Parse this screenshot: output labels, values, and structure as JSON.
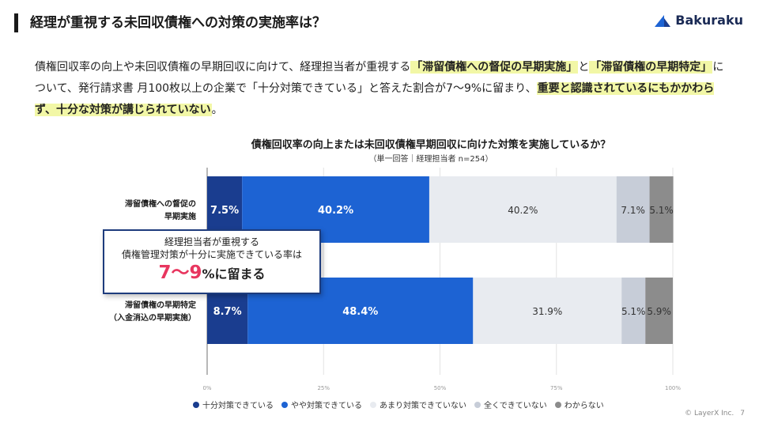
{
  "slide": {
    "title": "経理が重視する未回収債権への対策の実施率は？",
    "logo_text": "Bakuraku",
    "lead_parts": [
      {
        "text": "債権回収率の向上や未回収債権の早期回収に向けて、経理担当者が重視する",
        "hl": false
      },
      {
        "text": "「滞留債権への督促の早期実施」",
        "hl": true
      },
      {
        "text": "と",
        "hl": false
      },
      {
        "text": "「滞留債権の早期特定」",
        "hl": true
      },
      {
        "text": "について、発行請求書 月100枚以上の企業で「十分対策できている」と答えた割合が7〜9%に留まり、",
        "hl": false
      },
      {
        "text": "重要と認識されているにもかかわらず、十分な対策が講じられていない",
        "hl": true
      },
      {
        "text": "。",
        "hl": false
      }
    ],
    "callout": {
      "line1": "経理担当者が重視する",
      "line2": "債権管理対策が十分に実施できている率は",
      "big": "7〜9",
      "rest": "%に留まる"
    },
    "footer": {
      "copyright": "© LayerX Inc.",
      "page": "7"
    }
  },
  "chart_data": {
    "type": "bar",
    "orientation": "horizontal",
    "stacked": true,
    "title": "債権回収率の向上または未回収債権早期回収に向けた対策を実施しているか？",
    "subtitle": "（単一回答｜経理担当者 n=254）",
    "categories": [
      [
        "滞留債権への督促の",
        "早期実施"
      ],
      [
        "滞留債権の早期特定",
        "（入金消込の早期実施）"
      ]
    ],
    "series": [
      {
        "name": "十分対策できている",
        "values": [
          7.5,
          8.7
        ],
        "color": "#1a3d8f",
        "label_color": "#ffffff"
      },
      {
        "name": "やや対策できている",
        "values": [
          40.2,
          48.4
        ],
        "color": "#1d63d3",
        "label_color": "#ffffff"
      },
      {
        "name": "あまり対策できていない",
        "values": [
          40.2,
          31.9
        ],
        "color": "#e8ebf0",
        "label_color": "#333333"
      },
      {
        "name": "全くできていない",
        "values": [
          7.1,
          5.1
        ],
        "color": "#c7cdd8",
        "label_color": "#333333"
      },
      {
        "name": "わからない",
        "values": [
          5.1,
          5.9
        ],
        "color": "#8c8c8c",
        "label_color": "#333333"
      }
    ],
    "data_labels": [
      [
        "7.5%",
        "40.2%",
        "40.2%",
        "7.1%",
        "5.1%"
      ],
      [
        "8.7%",
        "48.4%",
        "31.9%",
        "5.1%",
        "5.9%"
      ]
    ],
    "x_ticks": [
      "0%",
      "25%",
      "50%",
      "75%",
      "100%"
    ],
    "tick_values": [
      0,
      25,
      50,
      75,
      100
    ],
    "xlim": [
      0,
      100
    ],
    "grid": true,
    "legend_position": "bottom"
  }
}
